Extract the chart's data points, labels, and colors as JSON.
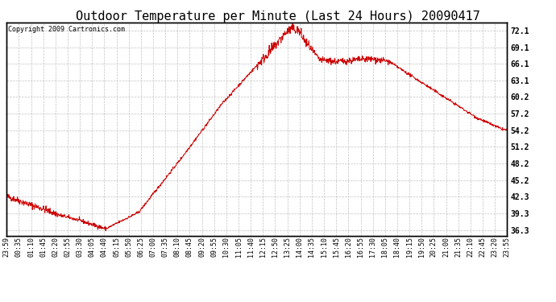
{
  "title": "Outdoor Temperature per Minute (Last 24 Hours) 20090417",
  "copyright": "Copyright 2009 Cartronics.com",
  "line_color": "#cc0000",
  "background_color": "#ffffff",
  "grid_color": "#bbbbbb",
  "yticks": [
    36.3,
    39.3,
    42.3,
    45.2,
    48.2,
    51.2,
    54.2,
    57.2,
    60.2,
    63.1,
    66.1,
    69.1,
    72.1
  ],
  "ylim": [
    35.3,
    73.5
  ],
  "xtick_labels": [
    "23:59",
    "00:35",
    "01:10",
    "01:45",
    "02:20",
    "02:55",
    "03:30",
    "04:05",
    "04:40",
    "05:15",
    "05:50",
    "06:25",
    "07:00",
    "07:35",
    "08:10",
    "08:45",
    "09:20",
    "09:55",
    "10:30",
    "11:05",
    "11:40",
    "12:15",
    "12:50",
    "13:25",
    "14:00",
    "14:35",
    "15:10",
    "15:45",
    "16:20",
    "16:55",
    "17:30",
    "18:05",
    "18:40",
    "19:15",
    "19:50",
    "20:25",
    "21:00",
    "21:35",
    "22:10",
    "22:45",
    "23:20",
    "23:55"
  ],
  "num_points": 1440,
  "title_fontsize": 11,
  "tick_fontsize": 7,
  "xtick_fontsize": 6
}
